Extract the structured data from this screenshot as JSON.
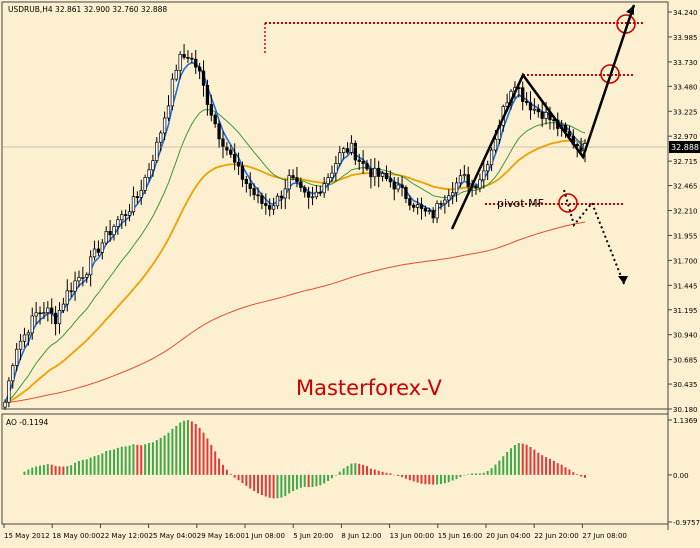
{
  "chart_data": {
    "type": "candlestick",
    "symbol_header": "USDRUB,H4  32.861 32.900 32.760 32.888",
    "watermark": "Masterforex-V",
    "annotation_pivot": "pivot MF",
    "current_price_label": "32.888",
    "current_price": 32.888,
    "price_axis": {
      "ticks": [
        "34.240",
        "33.985",
        "33.730",
        "33.480",
        "33.225",
        "32.970",
        "32.715",
        "32.465",
        "32.210",
        "31.955",
        "31.700",
        "31.445",
        "31.195",
        "30.940",
        "30.685",
        "30.435",
        "30.180"
      ],
      "min": 30.18,
      "max": 34.24
    },
    "ao_indicator": {
      "label": "AO -0.1194",
      "value": -0.1194,
      "ticks": [
        "1.1369",
        "0.00",
        "-0.9757"
      ],
      "max": 1.1369,
      "min": -0.9757
    },
    "x_axis": {
      "date_labels": [
        "15 May 2012",
        "18 May 00:00",
        "22 May 12:00",
        "25 May 04:00",
        "29 May 16:00",
        "1 Jun 08:00",
        "5 Jun 20:00",
        "8 Jun 12:00",
        "13 Jun 00:00",
        "15 Jun 16:00",
        "20 Jun 04:00",
        "22 Jun 20:00",
        "27 Jun 08:00"
      ]
    },
    "price_path": [
      30.25,
      30.8,
      30.95,
      31.15,
      31.2,
      31.1,
      31.35,
      31.5,
      31.6,
      31.8,
      31.95,
      32.1,
      32.2,
      32.35,
      32.6,
      32.9,
      33.3,
      33.75,
      33.8,
      33.65,
      33.3,
      33.0,
      32.8,
      32.6,
      32.45,
      32.3,
      32.25,
      32.35,
      32.55,
      32.4,
      32.3,
      32.45,
      32.6,
      32.8,
      32.85,
      32.7,
      32.6,
      32.55,
      32.5,
      32.4,
      32.3,
      32.2,
      32.15,
      32.35,
      32.45,
      32.55,
      32.45,
      32.6,
      32.9,
      33.25,
      33.55,
      33.35,
      33.25,
      33.2,
      33.1,
      33.0,
      32.9,
      32.85
    ],
    "colors": {
      "background": "#fdf0d0",
      "ema_fast": "#1e6fd9",
      "ema_mid": "#3a9a3a",
      "ema_slow": "#f0a000",
      "ema_long": "#e05030",
      "ao_up": "#3fa84a",
      "ao_down": "#e03a3a",
      "pattern": "#000000",
      "levels": "#cc0000"
    }
  }
}
